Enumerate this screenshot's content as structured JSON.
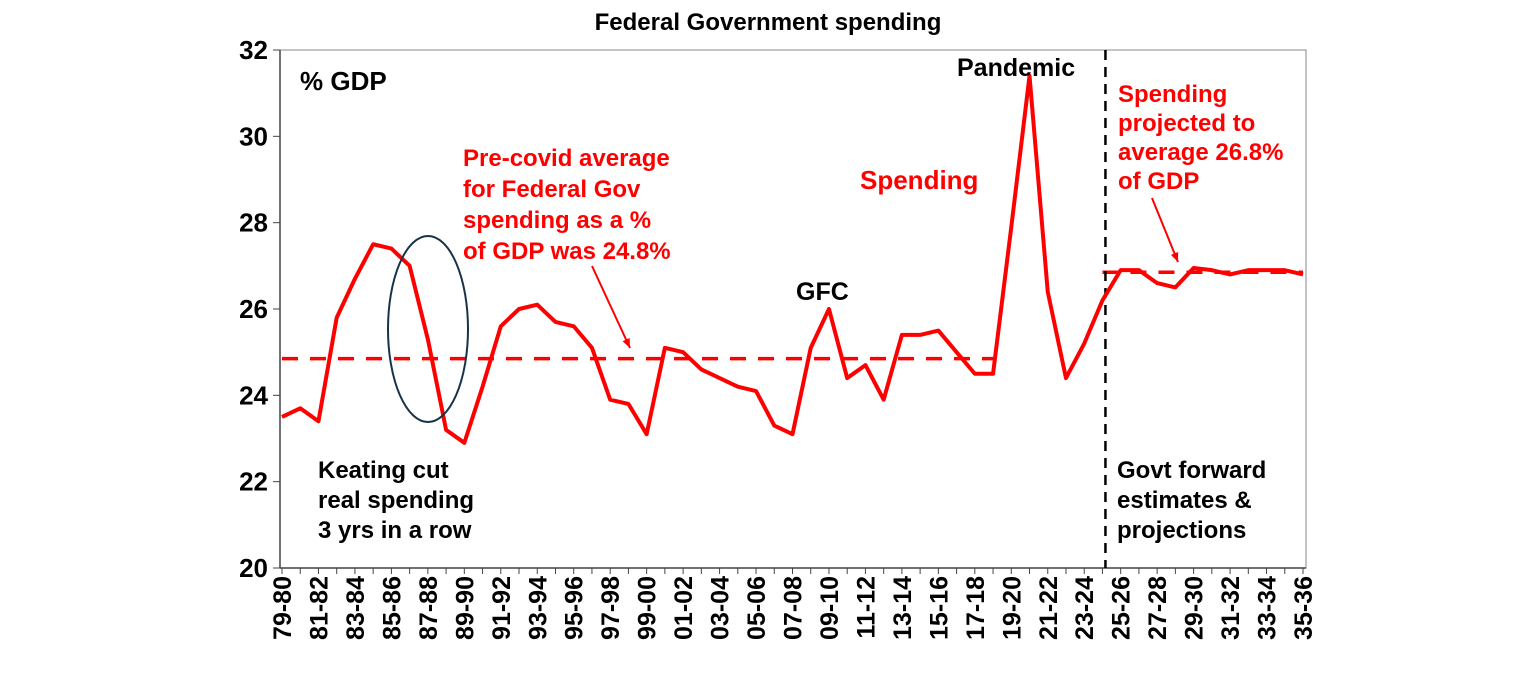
{
  "chart_data": {
    "type": "line",
    "title": "Federal Government spending",
    "ylabel": "% GDP",
    "xlabel": "",
    "ylim": [
      20,
      32
    ],
    "yticks": [
      20,
      22,
      24,
      26,
      28,
      30,
      32
    ],
    "grid": false,
    "categories": [
      "79-80",
      "80-81",
      "81-82",
      "82-83",
      "83-84",
      "84-85",
      "85-86",
      "86-87",
      "87-88",
      "88-89",
      "89-90",
      "90-91",
      "91-92",
      "92-93",
      "93-94",
      "94-95",
      "95-96",
      "96-97",
      "97-98",
      "98-99",
      "99-00",
      "00-01",
      "01-02",
      "02-03",
      "03-04",
      "04-05",
      "05-06",
      "06-07",
      "07-08",
      "08-09",
      "09-10",
      "10-11",
      "11-12",
      "12-13",
      "13-14",
      "14-15",
      "15-16",
      "16-17",
      "17-18",
      "18-19",
      "19-20",
      "20-21",
      "21-22",
      "22-23",
      "23-24",
      "24-25",
      "25-26",
      "26-27",
      "27-28",
      "28-29",
      "29-30",
      "30-31",
      "31-32",
      "32-33",
      "33-34",
      "34-35",
      "35-36"
    ],
    "series": [
      {
        "name": "Spending",
        "color": "#ff0000",
        "values": [
          23.5,
          23.7,
          23.4,
          25.8,
          26.7,
          27.5,
          27.4,
          27.0,
          25.3,
          23.2,
          22.9,
          24.2,
          25.6,
          26.0,
          26.1,
          25.7,
          25.6,
          25.1,
          23.9,
          23.8,
          23.1,
          25.1,
          25.0,
          24.6,
          24.4,
          24.2,
          24.1,
          23.3,
          23.1,
          25.1,
          26.0,
          24.4,
          24.7,
          23.9,
          25.4,
          25.4,
          25.5,
          25.0,
          24.5,
          24.5,
          27.9,
          31.4,
          26.4,
          24.4,
          25.2,
          26.2,
          26.9,
          26.9,
          26.6,
          26.5,
          26.95,
          26.9,
          26.8,
          26.9,
          26.9,
          26.9,
          26.8
        ]
      }
    ],
    "reference_lines": [
      {
        "label": "Pre-covid average",
        "value": 24.85,
        "from": "79-80",
        "to": "18-19",
        "style": "dashed",
        "color": "#ff0000"
      },
      {
        "label": "Projected average",
        "value": 26.85,
        "from": "24-25",
        "to": "35-36",
        "style": "dashed",
        "color": "#ff0000"
      }
    ],
    "divider": {
      "at": "24-25",
      "style": "dashed",
      "color": "#000000"
    },
    "annotations": {
      "precovid": [
        "Pre-covid average",
        "for Federal Gov",
        "spending as a %",
        "of GDP was 24.8%"
      ],
      "spending": "Spending",
      "pandemic": "Pandemic",
      "gfc": "GFC",
      "projection": [
        "Spending",
        "projected to",
        "average 26.8%",
        "of GDP"
      ],
      "keating": [
        "Keating cut",
        "real spending",
        "3 yrs in a row"
      ],
      "forward": [
        "Govt forward",
        "estimates &",
        "projections"
      ]
    }
  }
}
